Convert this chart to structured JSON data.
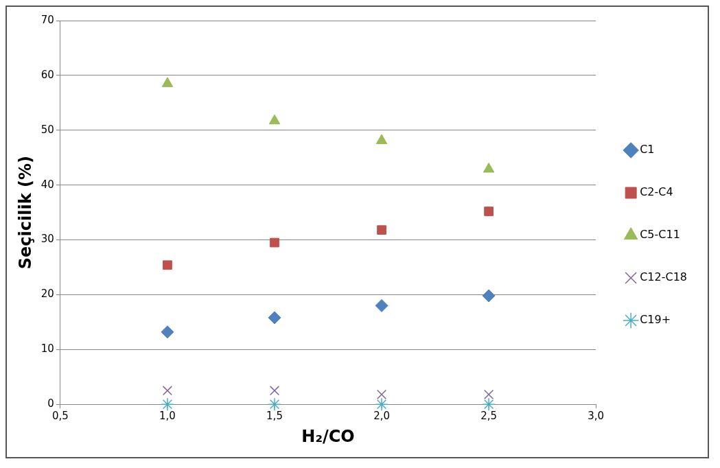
{
  "chart_data": {
    "type": "scatter",
    "xlabel": "H₂/CO",
    "ylabel": "Seçicilik (%)",
    "x": [
      1.0,
      1.5,
      2.0,
      2.5
    ],
    "xlim": [
      0.5,
      3.0
    ],
    "xticks": [
      {
        "value": 0.5,
        "label": "0,5"
      },
      {
        "value": 1.0,
        "label": "1,0"
      },
      {
        "value": 1.5,
        "label": "1,5"
      },
      {
        "value": 2.0,
        "label": "2,0"
      },
      {
        "value": 2.5,
        "label": "2,5"
      },
      {
        "value": 3.0,
        "label": "3,0"
      }
    ],
    "ylim": [
      0,
      70
    ],
    "yticks": [
      0,
      10,
      20,
      30,
      40,
      50,
      60,
      70
    ],
    "grid": "y",
    "legend": "right",
    "series": [
      {
        "name": "C1",
        "color": "#4f81bd",
        "marker": "diamond",
        "values": [
          13.2,
          15.8,
          18.0,
          19.8
        ]
      },
      {
        "name": "C2-C4",
        "color": "#c0504d",
        "marker": "square",
        "values": [
          25.4,
          29.5,
          31.8,
          35.2
        ]
      },
      {
        "name": "C5-C11",
        "color": "#9bbb59",
        "marker": "triangle",
        "values": [
          58.5,
          51.7,
          48.1,
          42.9
        ]
      },
      {
        "name": "C12-C18",
        "color": "#8064a2",
        "marker": "cross",
        "values": [
          2.5,
          2.5,
          1.8,
          1.8
        ]
      },
      {
        "name": "C19+",
        "color": "#4bacc6",
        "values": [
          0,
          0,
          0,
          0
        ]
      }
    ]
  }
}
